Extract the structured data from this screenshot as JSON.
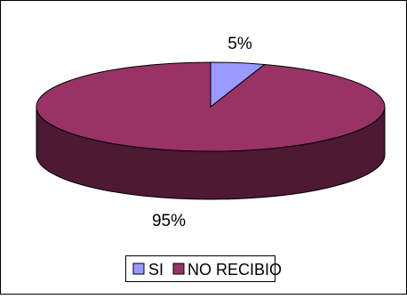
{
  "chart_data": {
    "type": "pie",
    "style": "3d",
    "categories": [
      "SI",
      "NO RECIBIO"
    ],
    "values": [
      5,
      95
    ],
    "data_labels": [
      "5%",
      "95%"
    ],
    "colors": {
      "SI": "#9999ff",
      "NO RECIBIO": "#993366",
      "NO RECIBIO side": "#4d1933"
    },
    "legend": {
      "placement": "bottom",
      "entries": [
        "SI",
        "NO RECIBIO"
      ]
    },
    "title": ""
  }
}
